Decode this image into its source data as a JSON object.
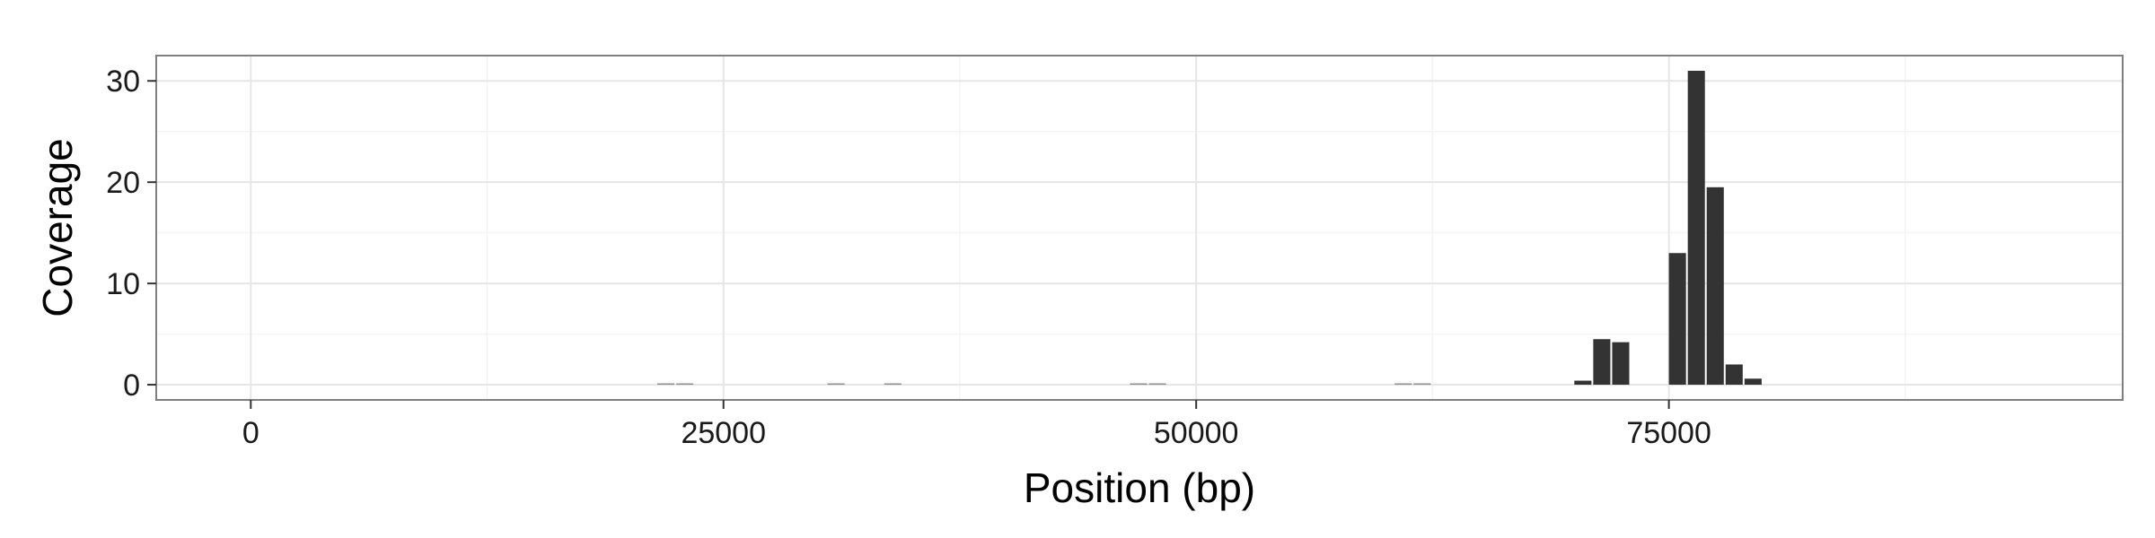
{
  "chart_data": {
    "type": "bar",
    "title": "",
    "xlabel": "Position (bp)",
    "ylabel": "Coverage",
    "xlim": [
      -5000,
      99000
    ],
    "ylim": [
      -1.5,
      32.5
    ],
    "x_ticks": [
      0,
      25000,
      50000,
      75000
    ],
    "x_tick_labels": [
      "0",
      "25000",
      "50000",
      "75000"
    ],
    "y_ticks": [
      0,
      10,
      20,
      30
    ],
    "y_tick_labels": [
      "0",
      "10",
      "20",
      "30"
    ],
    "bin_width": 1000,
    "grid": true,
    "legend": "none",
    "bar_color": "#333333",
    "series": [
      {
        "x": [
          22000,
          23000,
          31000,
          34000,
          47000,
          48000,
          61000,
          62000,
          70500,
          71500,
          72500,
          75500,
          76500,
          77500,
          78500,
          79500
        ],
        "values": [
          0.1,
          0.1,
          0.1,
          0.1,
          0.1,
          0.1,
          0.1,
          0.1,
          0.4,
          4.5,
          4.2,
          13,
          31,
          19.5,
          2,
          0.6
        ]
      }
    ]
  }
}
